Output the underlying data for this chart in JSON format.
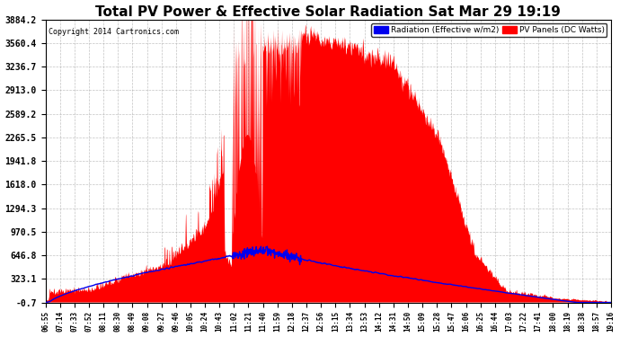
{
  "title": "Total PV Power & Effective Solar Radiation Sat Mar 29 19:19",
  "copyright": "Copyright 2014 Cartronics.com",
  "legend_radiation": "Radiation (Effective w/m2)",
  "legend_pv": "PV Panels (DC Watts)",
  "yticks": [
    3884.2,
    3560.4,
    3236.7,
    2913.0,
    2589.2,
    2265.5,
    1941.8,
    1618.0,
    1294.3,
    970.5,
    646.8,
    323.1,
    -0.7
  ],
  "ymin": -0.7,
  "ymax": 3884.2,
  "background_color": "#ffffff",
  "plot_background": "#ffffff",
  "grid_color": "#aaaaaa",
  "radiation_color": "#0000ee",
  "pv_color": "#ff0000",
  "title_fontsize": 11,
  "time_labels": [
    "06:55",
    "07:14",
    "07:33",
    "07:52",
    "08:11",
    "08:30",
    "08:49",
    "09:08",
    "09:27",
    "09:46",
    "10:05",
    "10:24",
    "10:43",
    "11:02",
    "11:21",
    "11:40",
    "11:59",
    "12:18",
    "12:37",
    "12:56",
    "13:15",
    "13:34",
    "13:53",
    "14:12",
    "14:31",
    "14:50",
    "15:09",
    "15:28",
    "15:47",
    "16:06",
    "16:25",
    "16:44",
    "17:03",
    "17:22",
    "17:41",
    "18:00",
    "18:19",
    "18:38",
    "18:57",
    "19:16"
  ]
}
